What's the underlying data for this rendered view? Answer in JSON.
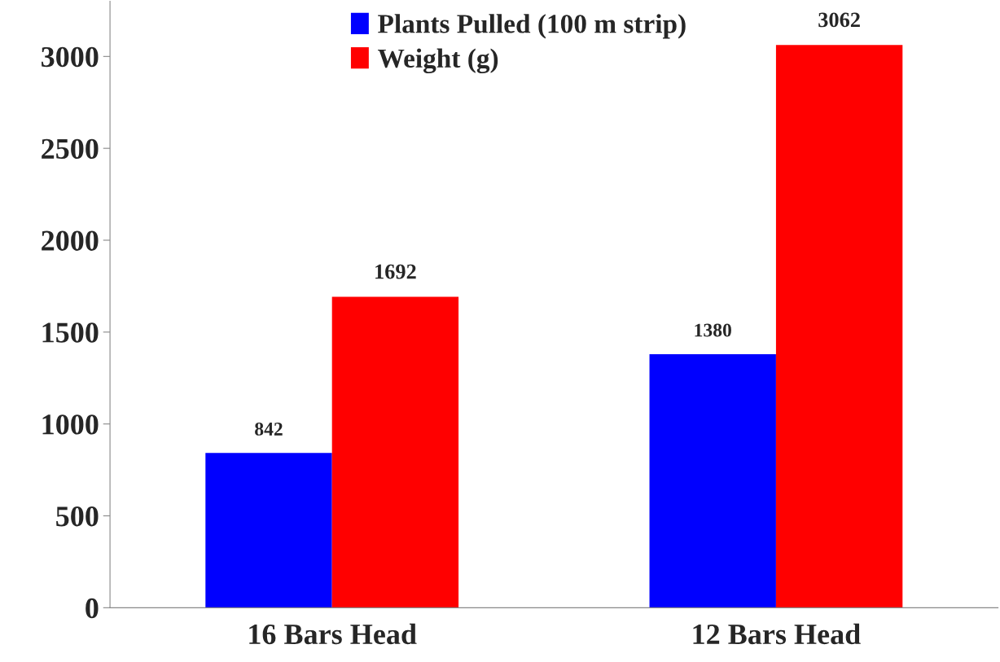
{
  "chart_data": {
    "type": "bar",
    "categories": [
      "16 Bars Head",
      "12 Bars Head"
    ],
    "series": [
      {
        "name": "Plants Pulled (100 m strip)",
        "color": "#0000ff",
        "values": [
          842,
          1380
        ]
      },
      {
        "name": "Weight (g)",
        "color": "#ff0000",
        "values": [
          1692,
          3062
        ]
      }
    ],
    "ylim": [
      0,
      3300
    ],
    "yticks": [
      0,
      500,
      1000,
      1500,
      2000,
      2500,
      3000
    ],
    "grid": false,
    "legend": "top",
    "data_labels": true
  }
}
